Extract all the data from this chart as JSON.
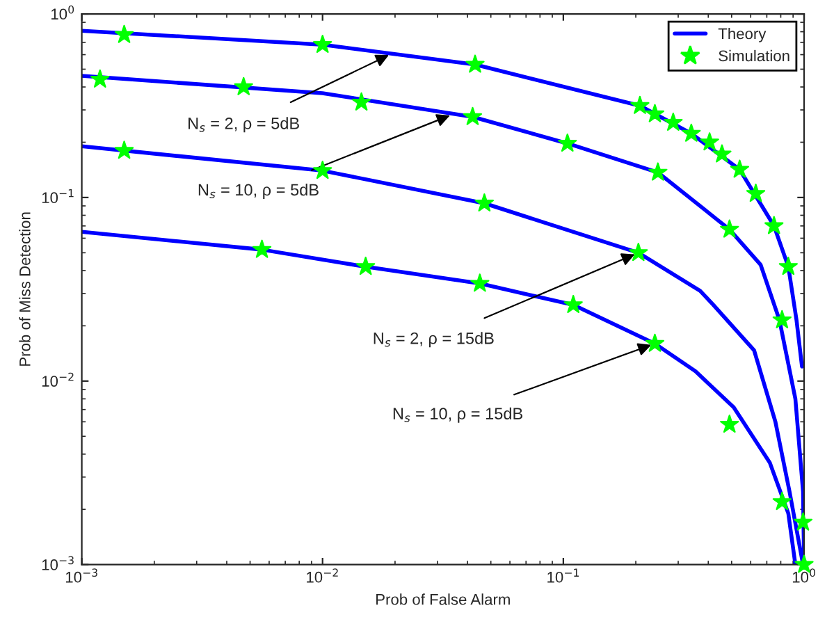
{
  "chart_data": {
    "type": "line",
    "xlabel": "Prob of False Alarm",
    "ylabel": "Prob of Miss Detection",
    "log": "xy",
    "xlim": [
      0.001,
      1
    ],
    "ylim": [
      0.001,
      1
    ],
    "xticks": [
      {
        "value": 0.001,
        "label": "10$^{−3}$"
      },
      {
        "value": 0.01,
        "label": "10$^{−2}$"
      },
      {
        "value": 0.1,
        "label": "10$^{−1}$"
      },
      {
        "value": 1,
        "label": "10$^{0}$"
      }
    ],
    "yticks": [
      {
        "value": 0.001,
        "label": "10$^{−3}$"
      },
      {
        "value": 0.01,
        "label": "10$^{−2}$"
      },
      {
        "value": 0.1,
        "label": "10$^{−1}$"
      },
      {
        "value": 1,
        "label": "10$^{0}$"
      }
    ],
    "grid": false,
    "legend": "top right",
    "line_style": "solid",
    "series": [
      {
        "name": "Theory",
        "color": "#0000ff",
        "marker": "none",
        "x": [
          0.001,
          0.01,
          0.043,
          0.208,
          0.34,
          0.54,
          0.75,
          0.86,
          0.93,
          0.98
        ],
        "values": [
          0.81,
          0.68,
          0.53,
          0.316,
          0.223,
          0.142,
          0.07,
          0.042,
          0.0215,
          0.012
        ]
      },
      {
        "color": "#0000ff",
        "marker": "none",
        "x": [
          0.001,
          0.01,
          0.042,
          0.104,
          0.247,
          0.49,
          0.66,
          0.79,
          0.92,
          0.99,
          1.0
        ],
        "values": [
          0.46,
          0.37,
          0.275,
          0.197,
          0.137,
          0.067,
          0.043,
          0.0215,
          0.008,
          0.0025,
          0.001
        ]
      },
      {
        "color": "#0000ff",
        "marker": "none",
        "x": [
          0.001,
          0.01,
          0.047,
          0.205,
          0.37,
          0.42,
          0.62,
          0.76,
          0.87,
          0.99
        ],
        "values": [
          0.19,
          0.14,
          0.093,
          0.05,
          0.031,
          0.026,
          0.0147,
          0.006,
          0.0025,
          0.001
        ]
      },
      {
        "color": "#0000ff",
        "marker": "none",
        "x": [
          0.001,
          0.0056,
          0.015,
          0.045,
          0.11,
          0.24,
          0.354,
          0.51,
          0.72,
          0.86,
          0.92
        ],
        "values": [
          0.065,
          0.052,
          0.042,
          0.034,
          0.026,
          0.016,
          0.0113,
          0.0072,
          0.0036,
          0.0019,
          0.001
        ]
      },
      {
        "name": "Simulation",
        "type": "scatter",
        "color": "#00ff00",
        "marker": "star",
        "x": [
          0.0015,
          0.01,
          0.043,
          0.208,
          0.24,
          0.286,
          0.34,
          0.405,
          0.456,
          0.54,
          0.63,
          0.75,
          0.86,
          0.00119,
          0.0047,
          0.0145,
          0.042,
          0.104,
          0.247,
          0.49,
          0.81,
          1.0,
          0.0015,
          0.01,
          0.047,
          0.205,
          0.99,
          0.0056,
          0.0151,
          0.045,
          0.11,
          0.24,
          0.49,
          0.81
        ],
        "values": [
          0.77,
          0.68,
          0.53,
          0.316,
          0.285,
          0.256,
          0.223,
          0.2,
          0.172,
          0.142,
          0.105,
          0.07,
          0.042,
          0.44,
          0.4,
          0.33,
          0.275,
          0.197,
          0.137,
          0.067,
          0.0215,
          0.001,
          0.18,
          0.14,
          0.093,
          0.05,
          0.0017,
          0.052,
          0.042,
          0.034,
          0.026,
          0.016,
          0.0058,
          0.0022
        ]
      }
    ],
    "annotations": [
      {
        "text": "N$_{s}$ = 2, ρ = 5dB",
        "x": 0.0195,
        "y": 0.61
      },
      {
        "text": "N$_{s}$ = 10, ρ = 5dB",
        "x": 0.035,
        "y": 0.285
      },
      {
        "text": "N$_{s}$ = 2, ρ = 15dB",
        "x": 0.205,
        "y": 0.05
      },
      {
        "text": "N$_{s}$ = 10, ρ = 15dB",
        "x": 0.24,
        "y": 0.016
      }
    ]
  }
}
